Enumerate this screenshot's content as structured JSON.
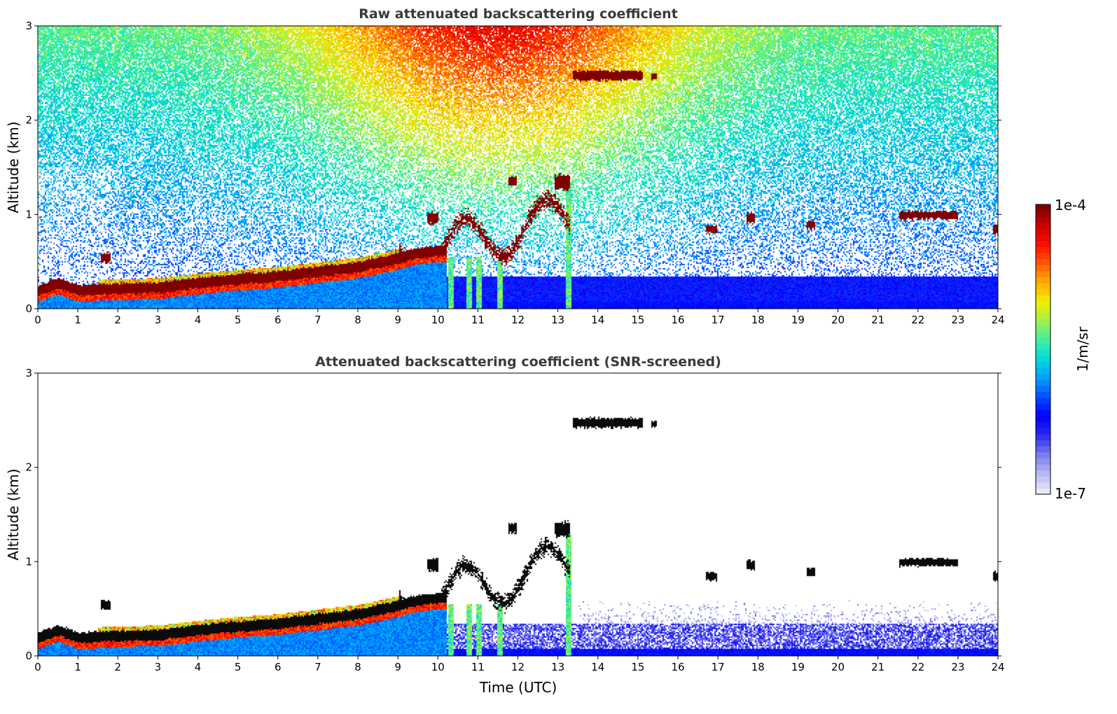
{
  "chart_data": [
    {
      "type": "heatmap",
      "title": "Raw attenuated backscattering coefficient",
      "xlabel": "",
      "ylabel": "Altitude (km)",
      "xlim": [
        0,
        24
      ],
      "ylim": [
        0,
        3
      ],
      "x_ticks": [
        "0",
        "1",
        "2",
        "3",
        "4",
        "5",
        "6",
        "7",
        "8",
        "9",
        "10",
        "11",
        "12",
        "13",
        "14",
        "15",
        "16",
        "17",
        "18",
        "19",
        "20",
        "21",
        "22",
        "23",
        "24"
      ],
      "y_ticks": [
        "0",
        "1",
        "2",
        "3"
      ],
      "screened": false
    },
    {
      "type": "heatmap",
      "title": "Attenuated backscattering coefficient (SNR-screened)",
      "xlabel": "Time (UTC)",
      "ylabel": "Altitude (km)",
      "xlim": [
        0,
        24
      ],
      "ylim": [
        0,
        3
      ],
      "x_ticks": [
        "0",
        "1",
        "2",
        "3",
        "4",
        "5",
        "6",
        "7",
        "8",
        "9",
        "10",
        "11",
        "12",
        "13",
        "14",
        "15",
        "16",
        "17",
        "18",
        "19",
        "20",
        "21",
        "22",
        "23",
        "24"
      ],
      "y_ticks": [
        "0",
        "1",
        "2",
        "3"
      ],
      "screened": true
    }
  ],
  "colorbar": {
    "label": "1/m/sr",
    "min_label": "1e-7",
    "max_label": "1e-4",
    "scale": "log",
    "colormap": [
      "#e8e8f8",
      "#b4b4f4",
      "#7878f0",
      "#2828f0",
      "#0000ff",
      "#0050ff",
      "#00a0ff",
      "#00dcd8",
      "#40f0a0",
      "#a0f050",
      "#f0f000",
      "#ffb000",
      "#ff6000",
      "#ff1000",
      "#d00000",
      "#800000"
    ]
  },
  "features": {
    "boundary_layer_top_km": [
      [
        0,
        0.2
      ],
      [
        0.5,
        0.28
      ],
      [
        1,
        0.2
      ],
      [
        2,
        0.22
      ],
      [
        3,
        0.23
      ],
      [
        4,
        0.28
      ],
      [
        5,
        0.32
      ],
      [
        6,
        0.35
      ],
      [
        7,
        0.4
      ],
      [
        8,
        0.45
      ],
      [
        8.8,
        0.52
      ],
      [
        9.5,
        0.6
      ],
      [
        10,
        0.62
      ]
    ],
    "cloud_layers": [
      {
        "x0": 13.35,
        "x1": 15.1,
        "y": 2.48,
        "thick": 0.1
      },
      {
        "x0": 15.3,
        "x1": 15.45,
        "y": 2.47,
        "thick": 0.06
      },
      {
        "x0": 21.5,
        "x1": 23.0,
        "y": 1.0,
        "thick": 0.08
      },
      {
        "x0": 17.7,
        "x1": 17.9,
        "y": 0.97,
        "thick": 0.1
      },
      {
        "x0": 19.2,
        "x1": 19.4,
        "y": 0.9,
        "thick": 0.08
      },
      {
        "x0": 16.7,
        "x1": 16.95,
        "y": 0.85,
        "thick": 0.08
      },
      {
        "x0": 23.85,
        "x1": 24.0,
        "y": 0.85,
        "thick": 0.1
      },
      {
        "x0": 11.75,
        "x1": 11.95,
        "y": 1.36,
        "thick": 0.1
      },
      {
        "x0": 12.9,
        "x1": 13.3,
        "y": 1.35,
        "thick": 0.15
      },
      {
        "x0": 9.7,
        "x1": 10.0,
        "y": 0.97,
        "thick": 0.12
      },
      {
        "x0": 1.55,
        "x1": 1.8,
        "y": 0.55,
        "thick": 0.1
      }
    ],
    "fall_streaks_hours": [
      10.3,
      10.75,
      11.0,
      11.55,
      13.25
    ]
  }
}
